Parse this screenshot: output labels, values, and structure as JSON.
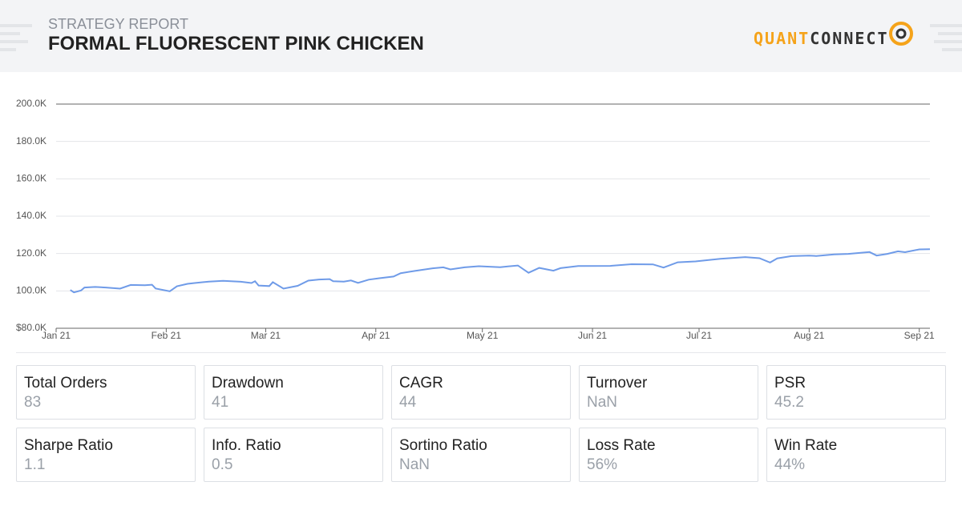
{
  "header": {
    "subtitle": "STRATEGY REPORT",
    "title": "FORMAL FLUORESCENT PINK CHICKEN",
    "logo": {
      "left": "QUANT",
      "right": "CONNECT"
    }
  },
  "chart_data": {
    "type": "line",
    "color": "#6f9be8",
    "grid": true,
    "x": [
      4,
      5,
      7,
      8,
      11,
      14,
      18,
      21,
      25,
      27,
      28,
      32,
      34,
      37,
      39,
      43,
      47,
      52,
      55,
      56,
      57,
      60,
      61,
      64,
      68,
      71,
      74,
      77,
      78,
      81,
      83,
      85,
      88,
      91,
      95,
      97,
      101,
      106,
      109,
      111,
      115,
      119,
      125,
      130,
      133,
      136,
      140,
      142,
      147,
      156,
      162,
      168,
      171,
      175,
      180,
      187,
      194,
      198,
      201,
      203,
      207,
      212,
      214,
      219,
      223,
      229,
      231,
      234,
      237,
      239,
      243,
      246
    ],
    "values": [
      100500,
      99200,
      100200,
      101800,
      102100,
      101800,
      101200,
      103200,
      103000,
      103300,
      101300,
      99800,
      102500,
      103800,
      104200,
      105000,
      105400,
      104900,
      104200,
      105200,
      102900,
      102600,
      104700,
      101200,
      102700,
      105500,
      106100,
      106300,
      105200,
      105000,
      105600,
      104300,
      106000,
      106800,
      107700,
      109500,
      110700,
      112100,
      112600,
      111500,
      112600,
      113200,
      112700,
      113600,
      109700,
      112300,
      110800,
      112200,
      113300,
      113400,
      114300,
      114200,
      112500,
      115300,
      115800,
      117200,
      118100,
      117500,
      115200,
      117400,
      118600,
      118900,
      118700,
      119500,
      119800,
      120800,
      118900,
      119800,
      121200,
      120700,
      122200,
      122300
    ],
    "xlim": [
      0,
      246
    ],
    "xticks": [
      {
        "value": 0,
        "label": "Jan 21"
      },
      {
        "value": 31,
        "label": "Feb 21"
      },
      {
        "value": 59,
        "label": "Mar 21"
      },
      {
        "value": 90,
        "label": "Apr 21"
      },
      {
        "value": 120,
        "label": "May 21"
      },
      {
        "value": 151,
        "label": "Jun 21"
      },
      {
        "value": 181,
        "label": "Jul 21"
      },
      {
        "value": 212,
        "label": "Aug 21"
      },
      {
        "value": 243,
        "label": "Sep 21"
      }
    ],
    "ylim": [
      80000,
      200000
    ],
    "yticks": [
      {
        "value": 80000,
        "label": "$80.0K"
      },
      {
        "value": 100000,
        "label": "100.0K"
      },
      {
        "value": 120000,
        "label": "120.0K"
      },
      {
        "value": 140000,
        "label": "140.0K"
      },
      {
        "value": 160000,
        "label": "160.0K"
      },
      {
        "value": 180000,
        "label": "180.0K"
      },
      {
        "value": 200000,
        "label": "200.0K"
      }
    ]
  },
  "stats": [
    {
      "label": "Total Orders",
      "value": "83"
    },
    {
      "label": "Drawdown",
      "value": "41"
    },
    {
      "label": "CAGR",
      "value": "44"
    },
    {
      "label": "Turnover",
      "value": "NaN"
    },
    {
      "label": "PSR",
      "value": "45.2"
    },
    {
      "label": "Sharpe Ratio",
      "value": "1.1"
    },
    {
      "label": "Info. Ratio",
      "value": "0.5"
    },
    {
      "label": "Sortino Ratio",
      "value": "NaN"
    },
    {
      "label": "Loss Rate",
      "value": "56%"
    },
    {
      "label": "Win Rate",
      "value": "44%"
    }
  ]
}
